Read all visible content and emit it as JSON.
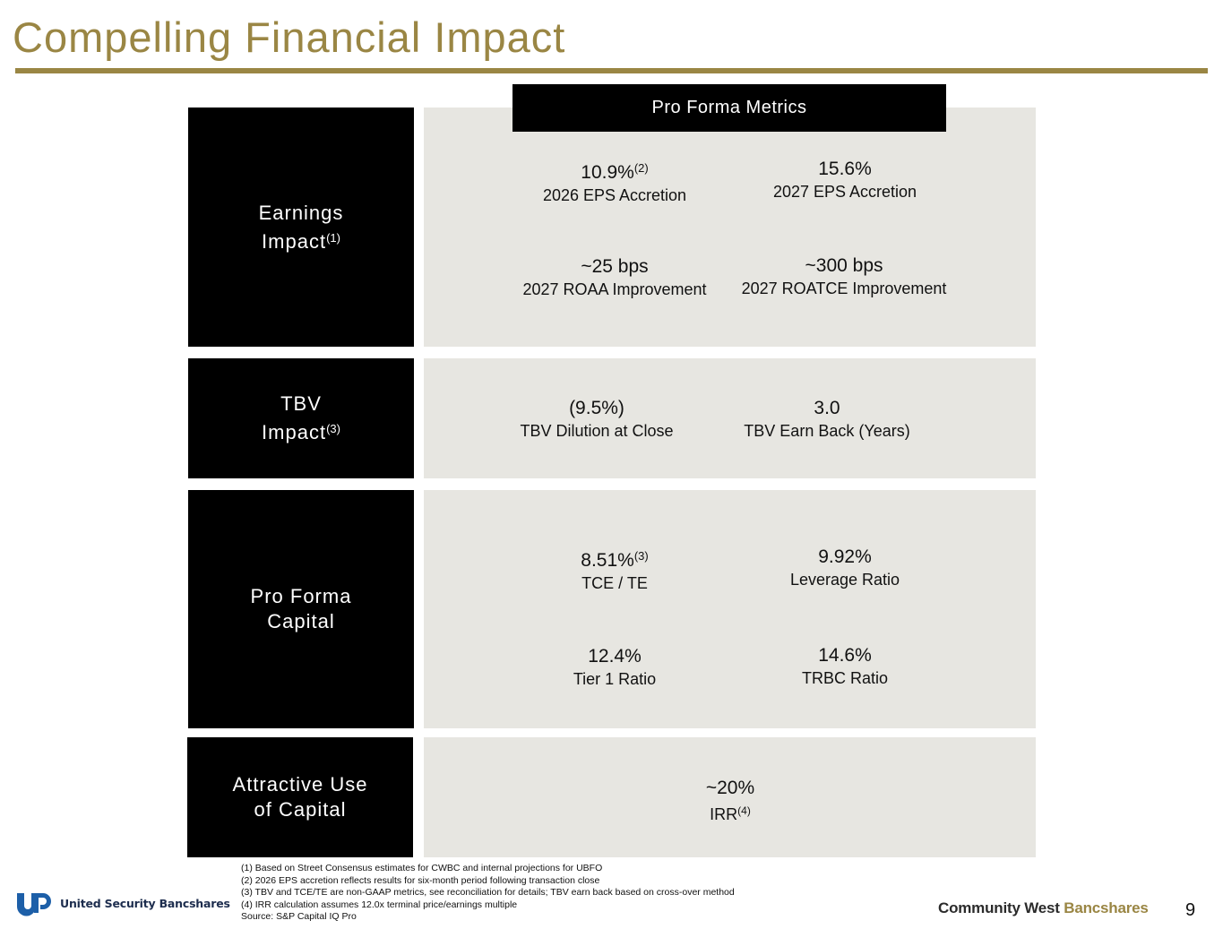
{
  "title": "Compelling Financial Impact",
  "header": "Pro Forma Metrics",
  "sections": {
    "earnings": {
      "label_line1": "Earnings",
      "label_line2": "Impact",
      "label_note": "(1)",
      "m1": {
        "value": "10.9%",
        "note": "(2)",
        "desc": "2026 EPS Accretion"
      },
      "m2": {
        "value": "15.6%",
        "desc": "2027 EPS Accretion"
      },
      "m3": {
        "value": "~25 bps",
        "desc": "2027 ROAA Improvement"
      },
      "m4": {
        "value": "~300 bps",
        "desc": "2027 ROATCE Improvement"
      }
    },
    "tbv": {
      "label_line1": "TBV",
      "label_line2": "Impact",
      "label_note": "(3)",
      "m1": {
        "value": "(9.5%)",
        "desc": "TBV Dilution at Close"
      },
      "m2": {
        "value": "3.0",
        "desc": "TBV Earn Back (Years)"
      }
    },
    "capital": {
      "label_line1": "Pro Forma",
      "label_line2": "Capital",
      "m1": {
        "value": "8.51%",
        "note": "(3)",
        "desc": "TCE / TE"
      },
      "m2": {
        "value": "9.92%",
        "desc": "Leverage Ratio"
      },
      "m3": {
        "value": "12.4%",
        "desc": "Tier 1 Ratio"
      },
      "m4": {
        "value": "14.6%",
        "desc": "TRBC Ratio"
      }
    },
    "use": {
      "label_line1": "Attractive Use",
      "label_line2": "of Capital",
      "m1": {
        "value": "~20%",
        "desc": "IRR",
        "note": "(4)"
      }
    }
  },
  "footnotes": [
    "(1) Based on Street Consensus estimates for CWBC and internal projections for UBFO",
    "(2) 2026 EPS accretion reflects results for six-month period following transaction close",
    "(3) TBV and TCE/TE are non-GAAP metrics, see reconciliation for details; TBV earn back based on cross-over method",
    "(4) IRR calculation assumes 12.0x terminal price/earnings multiple",
    "Source: S&P Capital IQ Pro"
  ],
  "logos": {
    "left": "United Security Bancshares",
    "right_part1": "Community West ",
    "right_part2": "Bancshares",
    "left_icon": "usb-logo-icon"
  },
  "page_number": "9",
  "colors": {
    "accent": "#9a8644",
    "panel": "#e7e6e1",
    "label_bg": "#000000",
    "usb_navy": "#1d2d4e"
  }
}
